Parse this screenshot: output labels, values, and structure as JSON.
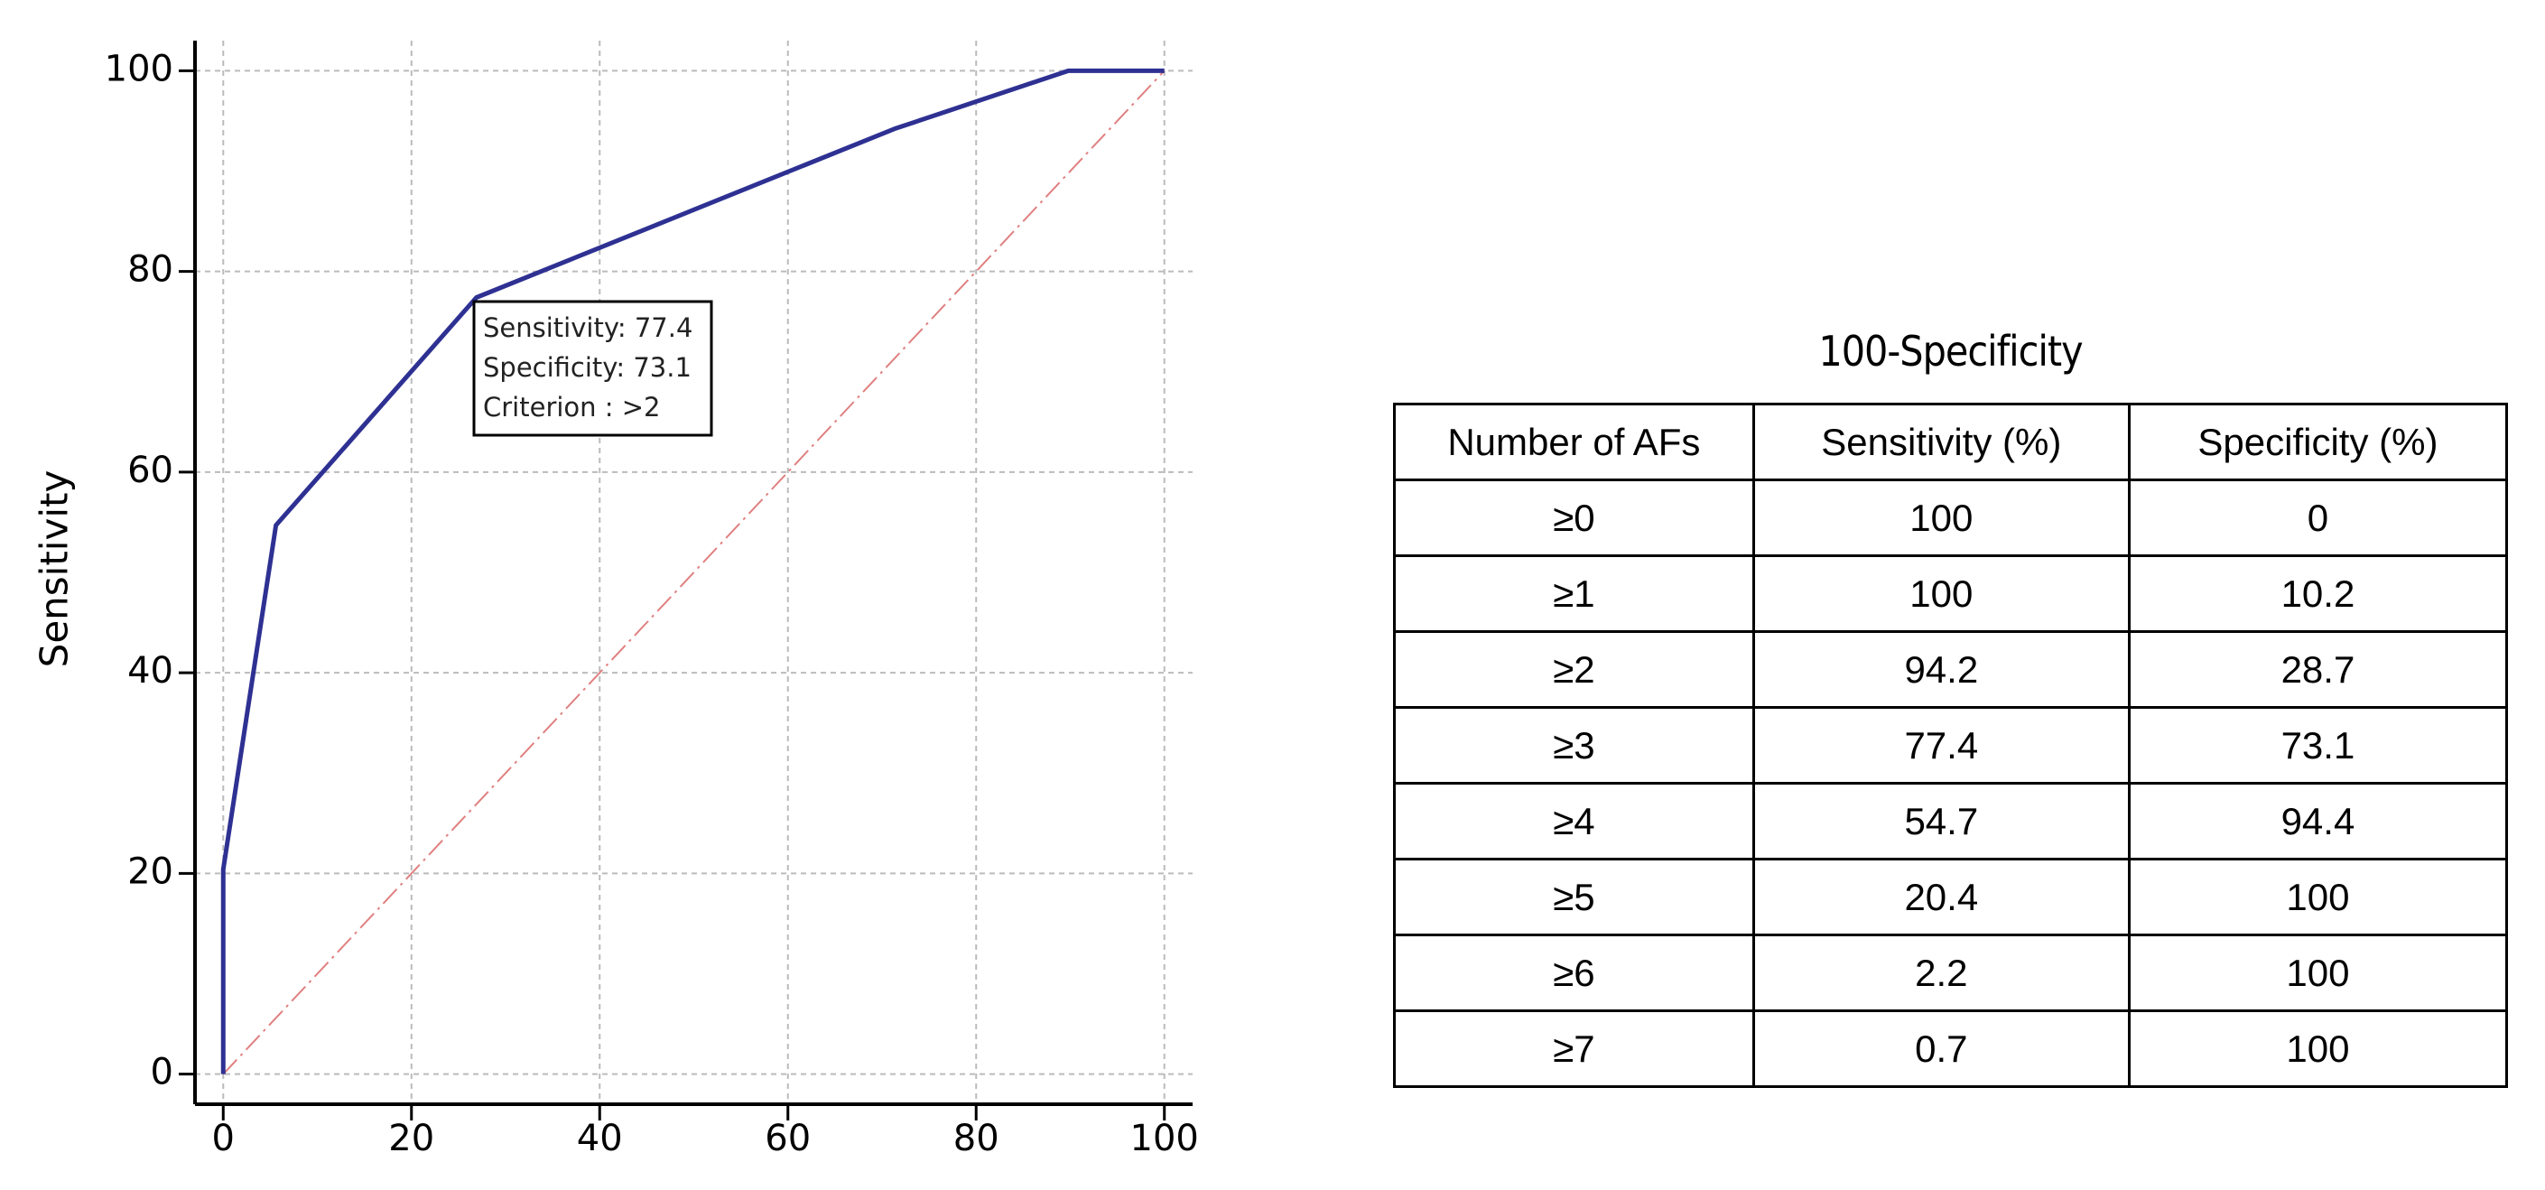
{
  "chart_data": {
    "type": "line",
    "ylabel": "Sensitivity",
    "xlim": [
      -3,
      103
    ],
    "ylim": [
      -3,
      103
    ],
    "xticks": [
      0,
      20,
      40,
      60,
      80,
      100
    ],
    "yticks": [
      0,
      20,
      40,
      60,
      80,
      100
    ],
    "grid": true,
    "series": [
      {
        "color": "#2e3192",
        "x": [
          0,
          0,
          0,
          0,
          5.6,
          26.9,
          71.3,
          89.8,
          100
        ],
        "values": [
          0,
          0.7,
          2.2,
          20.4,
          54.7,
          77.4,
          94.2,
          100,
          100
        ]
      },
      {
        "color": "#e08080",
        "dashed": true,
        "x": [
          0,
          100
        ],
        "values": [
          0,
          100
        ]
      }
    ],
    "annotation": [
      "Sensitivity: 77.4",
      "Specificity: 73.1",
      "Criterion : >2"
    ]
  },
  "table": {
    "title": "100-Specificity",
    "header": [
      "Number of AFs",
      "Sensitivity (%)",
      "Specificity (%)"
    ],
    "rows": [
      [
        "≥0",
        100,
        0
      ],
      [
        "≥1",
        100,
        10.2
      ],
      [
        "≥2",
        94.2,
        28.7
      ],
      [
        "≥3",
        77.4,
        73.1
      ],
      [
        "≥4",
        54.7,
        94.4
      ],
      [
        "≥5",
        20.4,
        100
      ],
      [
        "≥6",
        2.2,
        100
      ],
      [
        "≥7",
        0.7,
        100
      ]
    ]
  }
}
